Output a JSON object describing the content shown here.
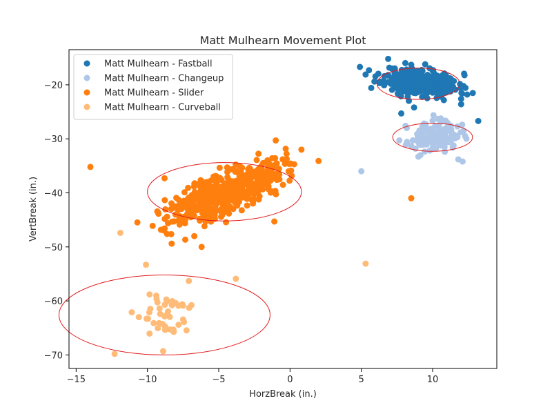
{
  "chart_data": {
    "type": "scatter",
    "title": "Matt Mulhearn Movement Plot",
    "xlabel": "HorzBreak (in.)",
    "ylabel": "VertBreak (in.)",
    "xlim": [
      -15.5,
      14.5
    ],
    "ylim": [
      -72.5,
      -13.5
    ],
    "xticks": [
      -15,
      -10,
      -5,
      0,
      5,
      10
    ],
    "yticks": [
      -70,
      -60,
      -50,
      -40,
      -30,
      -20
    ],
    "grid": false,
    "legend_position": "top-left",
    "series": [
      {
        "name": "Matt Mulhearn - Fastball",
        "color": "#1f77b4",
        "center": [
          9.2,
          -19.5
        ],
        "spread": [
          1.3,
          1.3
        ],
        "corr": -0.3,
        "count": 330,
        "seed": 11,
        "points": [
          [
            4.9,
            -16.7
          ],
          [
            5.3,
            -18.1
          ],
          [
            13.2,
            -26.7
          ],
          [
            12.0,
            -23.6
          ],
          [
            12.0,
            -22.6
          ],
          [
            7.8,
            -25.3
          ],
          [
            8.7,
            -24.2
          ],
          [
            11.6,
            -20.9
          ],
          [
            8.5,
            -16.3
          ]
        ]
      },
      {
        "name": "Matt Mulhearn - Changeup",
        "color": "#aec7e8",
        "center": [
          10.1,
          -29.6
        ],
        "spread": [
          0.9,
          1.3
        ],
        "corr": 0.1,
        "count": 130,
        "seed": 23,
        "points": [
          [
            5.0,
            -36.0
          ],
          [
            12.1,
            -34.2
          ],
          [
            11.8,
            -33.8
          ],
          [
            8.5,
            -31.3
          ],
          [
            9.0,
            -33.3
          ],
          [
            8.1,
            -27.6
          ]
        ]
      },
      {
        "name": "Matt Mulhearn - Slider",
        "color": "#ff7f0e",
        "center": [
          -4.5,
          -39.8
        ],
        "spread": [
          2.0,
          2.9
        ],
        "corr": 0.72,
        "count": 520,
        "seed": 37,
        "points": [
          [
            -14.0,
            -35.2
          ],
          [
            -8.8,
            -37.3
          ],
          [
            -8.3,
            -49.4
          ],
          [
            -6.2,
            -50.0
          ],
          [
            2.0,
            -34.1
          ],
          [
            8.5,
            -41.0
          ],
          [
            -1.0,
            -30.3
          ],
          [
            0.8,
            -32.0
          ],
          [
            -1.1,
            -45.3
          ]
        ]
      },
      {
        "name": "Matt Mulhearn - Curveball",
        "color": "#ffbb78",
        "center": [
          -8.8,
          -62.6
        ],
        "spread": [
          1.0,
          2.2
        ],
        "corr": 0.1,
        "count": 42,
        "seed": 51,
        "points": [
          [
            -12.3,
            -69.8
          ],
          [
            -11.9,
            -47.4
          ],
          [
            -10.1,
            -53.3
          ],
          [
            -7.1,
            -56.3
          ],
          [
            -3.8,
            -55.9
          ],
          [
            5.3,
            -53.1
          ],
          [
            -8.9,
            -69.3
          ],
          [
            -11.1,
            -62.1
          ],
          [
            -10.6,
            -63.0
          ]
        ]
      }
    ],
    "ellipses": [
      {
        "center": [
          9.0,
          -19.8
        ],
        "width": 2.9,
        "height": 2.9,
        "color": "#e31a1c"
      },
      {
        "center": [
          10.0,
          -29.7
        ],
        "width": 2.8,
        "height": 2.6,
        "color": "#e31a1c"
      },
      {
        "center": [
          -4.6,
          -39.8
        ],
        "width": 5.4,
        "height": 5.4,
        "color": "#e31a1c"
      },
      {
        "center": [
          -8.8,
          -62.6
        ],
        "width": 7.4,
        "height": 7.4,
        "color": "#e31a1c"
      }
    ]
  }
}
